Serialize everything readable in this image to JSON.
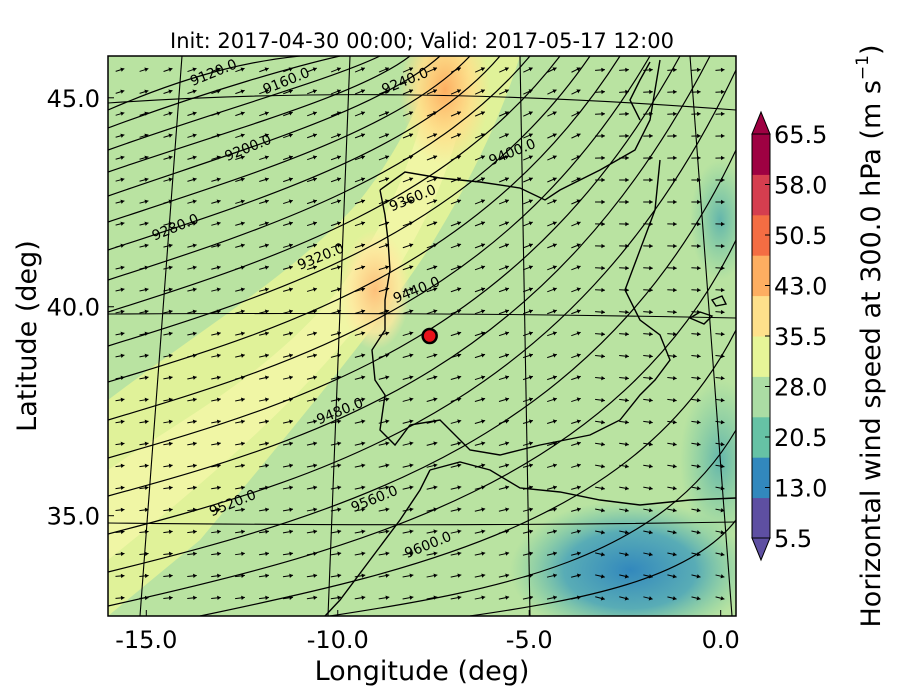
{
  "title": "Init: 2017-04-30 00:00; Valid: 2017-05-17 12:00",
  "axes": {
    "xlabel": "Longitude (deg)",
    "ylabel": "Latitude (deg)",
    "xlim": [
      -16.0,
      0.4
    ],
    "ylim": [
      32.6,
      46.0
    ],
    "xticks": [
      {
        "value": -15.0,
        "label": "-15.0"
      },
      {
        "value": -10.0,
        "label": "-10.0"
      },
      {
        "value": -5.0,
        "label": "-5.0"
      },
      {
        "value": 0.0,
        "label": "0.0"
      }
    ],
    "yticks": [
      {
        "value": 45.0,
        "label": "45.0"
      },
      {
        "value": 40.0,
        "label": "40.0"
      },
      {
        "value": 35.0,
        "label": "35.0"
      }
    ]
  },
  "colorbar": {
    "label": "Horizontal wind speed at 300.0 hPa (m s",
    "label_exponent": "−1",
    "label_suffix": ")",
    "ticks": [
      "5.5",
      "13.0",
      "20.5",
      "28.0",
      "35.5",
      "43.0",
      "50.5",
      "58.0",
      "65.5"
    ],
    "range": [
      5.5,
      65.5
    ],
    "colors": [
      "#5e4fa2",
      "#3288bd",
      "#66c2a5",
      "#abdda4",
      "#e6f598",
      "#fee08b",
      "#fdae61",
      "#f46d43",
      "#d53e4f",
      "#9e0142"
    ],
    "extend": "both"
  },
  "chart_data": {
    "type": "map",
    "field": "Horizontal wind speed at 300.0 hPa (m s^-1)",
    "contour_labels": [
      {
        "text": "9120.0",
        "lon": -13.2,
        "lat": 45.5
      },
      {
        "text": "9160.0",
        "lon": -11.3,
        "lat": 45.3
      },
      {
        "text": "9240.0",
        "lon": -8.2,
        "lat": 45.3
      },
      {
        "text": "9200.0",
        "lon": -12.3,
        "lat": 43.7
      },
      {
        "text": "9400.0",
        "lon": -5.4,
        "lat": 43.6
      },
      {
        "text": "9360.0",
        "lon": -8.0,
        "lat": 42.5
      },
      {
        "text": "9280.0",
        "lon": -14.2,
        "lat": 41.8
      },
      {
        "text": "9320.0",
        "lon": -10.4,
        "lat": 41.1
      },
      {
        "text": "9440.0",
        "lon": -7.9,
        "lat": 40.3
      },
      {
        "text": "9480.0",
        "lon": -9.9,
        "lat": 37.4
      },
      {
        "text": "9520.0",
        "lon": -12.7,
        "lat": 35.2
      },
      {
        "text": "9560.0",
        "lon": -9.0,
        "lat": 35.3
      },
      {
        "text": "9600.0",
        "lon": -7.6,
        "lat": 34.2
      }
    ],
    "marker": {
      "lon": -7.6,
      "lat": 39.3,
      "color": "#e8131b"
    },
    "wind_speed_maxima": [
      {
        "lon": -7.0,
        "lat": 45.5,
        "value": 48
      },
      {
        "lon": -9.0,
        "lat": 41.5,
        "value": 42
      }
    ],
    "wind_speed_minima": [
      {
        "lon": -2.5,
        "lat": 33.8,
        "value": 10
      },
      {
        "lon": 0.0,
        "lat": 37.0,
        "value": 14
      }
    ]
  }
}
